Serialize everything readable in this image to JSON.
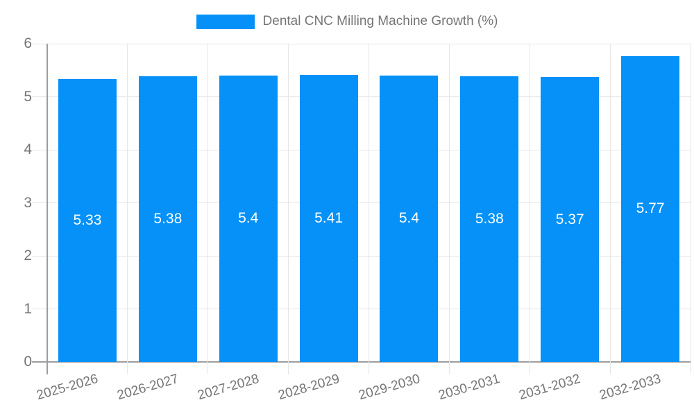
{
  "legend": {
    "label": "Dental CNC Milling Machine Growth (%)",
    "swatch_color": "#0591f8"
  },
  "chart_data": {
    "type": "bar",
    "title": "Dental CNC Milling Machine Growth (%)",
    "categories": [
      "2025-2026",
      "2026-2027",
      "2027-2028",
      "2028-2029",
      "2029-2030",
      "2030-2031",
      "2031-2032",
      "2032-2033"
    ],
    "values": [
      5.33,
      5.38,
      5.4,
      5.41,
      5.4,
      5.38,
      5.37,
      5.77
    ],
    "bar_labels": [
      "5.33",
      "5.38",
      "5.4",
      "5.41",
      "5.4",
      "5.38",
      "5.37",
      "5.77"
    ],
    "xlabel": "",
    "ylabel": "",
    "ylim": [
      0,
      6
    ],
    "yticks": [
      "0",
      "1",
      "2",
      "3",
      "4",
      "5",
      "6"
    ],
    "grid": true,
    "legend_position": "top",
    "x_label_rotation_deg": -16,
    "colors": {
      "bar": "#0591f8",
      "grid_line": "#e6e6e6",
      "axis_line": "#9e9e9e",
      "tick_label": "#757575",
      "bar_value_label": "#ffffff",
      "background": "#ffffff"
    }
  }
}
